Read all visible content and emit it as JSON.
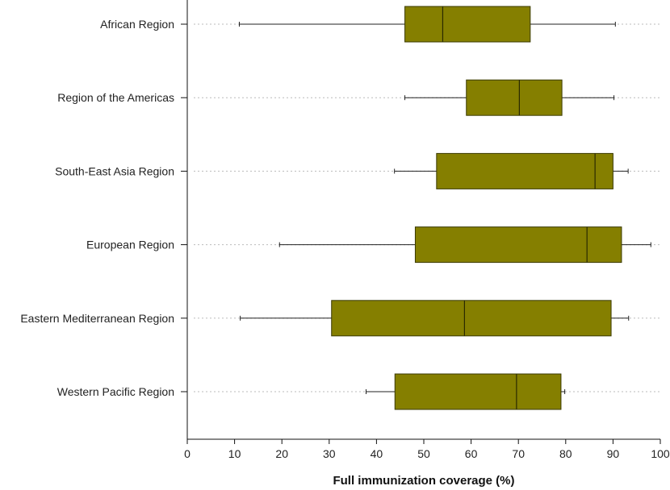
{
  "chart_data": {
    "type": "boxplot",
    "orientation": "horizontal",
    "title": "",
    "xlabel": "Full immunization coverage (%)",
    "ylabel": "",
    "xlim": [
      0,
      100
    ],
    "xticks": [
      "0",
      "10",
      "20",
      "30",
      "40",
      "50",
      "60",
      "70",
      "80",
      "90",
      "100"
    ],
    "grid": "dotted horizontal guide lines per category",
    "legend": "none",
    "box_color": "#857f00",
    "categories": [
      "African Region",
      "Region of the Americas",
      "South-East Asia Region",
      "European Region",
      "Eastern Mediterranean Region",
      "Western Pacific Region"
    ],
    "boxes": [
      {
        "category": "African Region",
        "min": 11,
        "q1": 46,
        "median": 54,
        "q3": 72.5,
        "max": 90.5
      },
      {
        "category": "Region of the Americas",
        "min": 46,
        "q1": 59,
        "median": 70.2,
        "q3": 79.2,
        "max": 90.2
      },
      {
        "category": "South-East Asia Region",
        "min": 43.8,
        "q1": 52.7,
        "median": 86.2,
        "q3": 90,
        "max": 93.2
      },
      {
        "category": "European Region",
        "min": 19.5,
        "q1": 48.2,
        "median": 84.5,
        "q3": 91.8,
        "max": 98
      },
      {
        "category": "Eastern Mediterranean Region",
        "min": 11.2,
        "q1": 30.5,
        "median": 58.6,
        "q3": 89.6,
        "max": 93.3
      },
      {
        "category": "Western Pacific Region",
        "min": 37.8,
        "q1": 43.9,
        "median": 69.6,
        "q3": 79,
        "max": 79.8
      }
    ]
  }
}
